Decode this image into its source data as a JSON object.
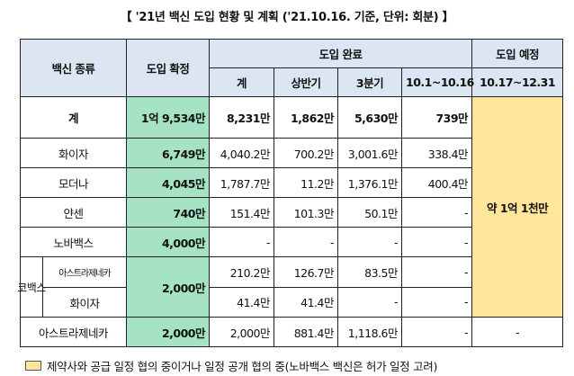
{
  "title": "【 '21년 백신 도입 현황 및 계획 ('21.10.16. 기준, 단위: 회분) 】",
  "headers": {
    "vaccine": "백신 종류",
    "confirmed": "도입 확정",
    "completed": "도입 완료",
    "planned": "도입 예정",
    "total": "계",
    "h1": "상반기",
    "q3": "3분기",
    "oct": "10.1~10.16",
    "plan_period": "10.17~12.31"
  },
  "rows": {
    "total": {
      "name": "계",
      "confirmed": "1억 9,534만",
      "total": "8,231만",
      "h1": "1,862만",
      "q3": "5,630만",
      "oct": "739만"
    },
    "pfizer": {
      "name": "화이자",
      "confirmed": "6,749만",
      "total": "4,040.2만",
      "h1": "700.2만",
      "q3": "3,001.6만",
      "oct": "338.4만"
    },
    "moderna": {
      "name": "모더나",
      "confirmed": "4,045만",
      "total": "1,787.7만",
      "h1": "11.2만",
      "q3": "1,376.1만",
      "oct": "400.4만"
    },
    "janssen": {
      "name": "얀센",
      "confirmed": "740만",
      "total": "151.4만",
      "h1": "101.3만",
      "q3": "50.1만",
      "oct": "-"
    },
    "novavax": {
      "name": "노바백스",
      "confirmed": "4,000만",
      "total": "-",
      "h1": "-",
      "q3": "-",
      "oct": "-"
    },
    "covax": {
      "name": "코백스",
      "confirmed": "2,000만",
      "az": {
        "name": "아스트라제네카",
        "total": "210.2만",
        "h1": "126.7만",
        "q3": "83.5만",
        "oct": "-"
      },
      "pfizer": {
        "name": "화이자",
        "total": "41.4만",
        "h1": "41.4만",
        "q3": "-",
        "oct": "-"
      }
    },
    "az": {
      "name": "아스트라제네카",
      "confirmed": "2,000만",
      "total": "2,000만",
      "h1": "881.4만",
      "q3": "1,118.6만",
      "oct": "-",
      "plan": "-"
    }
  },
  "planned_value": "약 1억 1천만",
  "legend": "제약사와 공급 일정 협의 중이거나 일정 공개 협의 중(노바백스 백신은 허가 일정 고려)"
}
